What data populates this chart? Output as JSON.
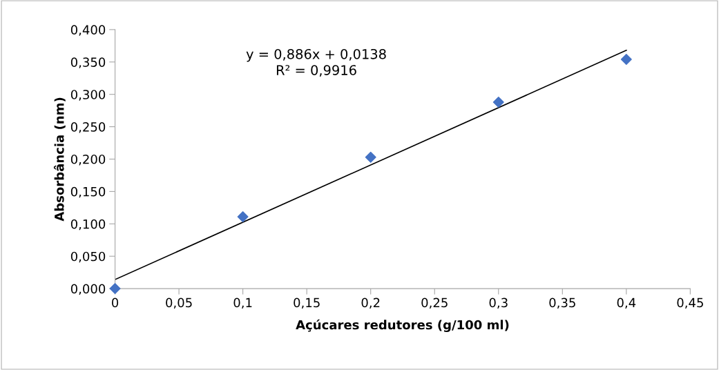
{
  "chart_data": {
    "type": "scatter",
    "xlabel": "Açúcares redutores (g/100 ml)",
    "ylabel": "Absorbância (nm)",
    "x": [
      0,
      0.1,
      0.2,
      0.3,
      0.4
    ],
    "series": [
      {
        "color": "#4472c4",
        "marker": "diamond",
        "values": [
          0.0,
          0.111,
          0.203,
          0.288,
          0.354
        ]
      },
      {
        "type": "line",
        "color": "#000000",
        "marker": "none",
        "x": [
          0,
          0.4
        ],
        "values": [
          0.014,
          0.368
        ]
      }
    ],
    "annotations": [
      "y = 0,886x + 0,0138\nR² = 0,9916"
    ],
    "xlim": [
      0,
      0.45
    ],
    "xticks": [
      0,
      {
        "value": 0.05,
        "label": "0,05"
      },
      {
        "value": 0.1,
        "label": "0,1"
      },
      {
        "value": 0.15,
        "label": "0,15"
      },
      {
        "value": 0.2,
        "label": "0,2"
      },
      {
        "value": 0.25,
        "label": "0,25"
      },
      {
        "value": 0.3,
        "label": "0,3"
      },
      {
        "value": 0.35,
        "label": "0,35"
      },
      {
        "value": 0.4,
        "label": "0,4"
      },
      {
        "value": 0.45,
        "label": "0,45"
      }
    ],
    "ylim": [
      0,
      0.4
    ],
    "yticks": [
      {
        "value": 0,
        "label": "0,000"
      },
      {
        "value": 0.05,
        "label": "0,050"
      },
      {
        "value": 0.1,
        "label": "0,100"
      },
      {
        "value": 0.15,
        "label": "0,150"
      },
      {
        "value": 0.2,
        "label": "0,200"
      },
      {
        "value": 0.25,
        "label": "0,250"
      },
      {
        "value": 0.3,
        "label": "0,300"
      },
      {
        "value": 0.35,
        "label": "0,350"
      },
      {
        "value": 0.4,
        "label": "0,400"
      }
    ],
    "grid": false,
    "legend": false
  }
}
